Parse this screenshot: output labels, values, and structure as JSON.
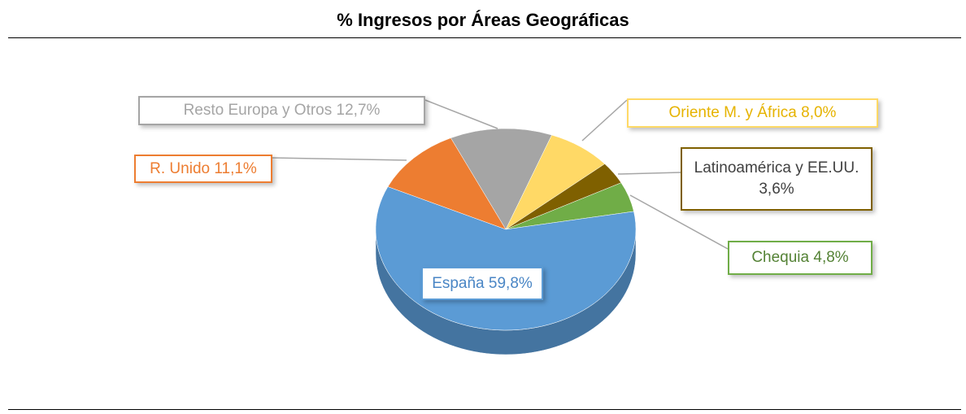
{
  "chart_data": {
    "type": "pie",
    "title": "% Ingresos por Áreas Geográficas",
    "categories": [
      "Resto Europa y Otros",
      "Oriente M. y África",
      "Latinoamérica y EE.UU.",
      "Chequia",
      "España",
      "R. Unido"
    ],
    "values": [
      12.7,
      8.0,
      3.6,
      4.8,
      59.8,
      11.1
    ],
    "value_labels": [
      "12,7%",
      "8,0%",
      "3,6%",
      "4,8%",
      "59,8%",
      "11,1%"
    ],
    "colors": [
      "#a5a5a5",
      "#ffd966",
      "#7f6000",
      "#70ad47",
      "#5b9bd5",
      "#ed7d31"
    ]
  }
}
